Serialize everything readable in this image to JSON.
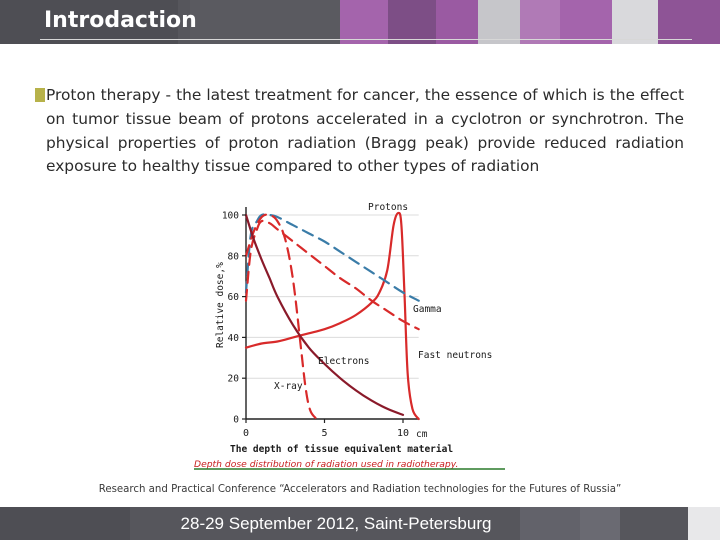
{
  "slide": {
    "title": "Introdaction",
    "body": "Proton therapy - the latest treatment for cancer, the essence of which is the effect on tumor tissue beam of protons accelerated in a cyclotron or synchrotron. The physical properties of proton radiation (Bragg peak) provide reduced radiation exposure to healthy tissue compared to other types of radiation",
    "conference_note": "Research and Practical Conference “Accelerators and Radiation technologies for the Futures of Russia”",
    "footer": "28-29 September 2012, Saint-Petersburg",
    "colors": {
      "accent_purple": "#a060a8",
      "header_gray": "#56565c",
      "bullet": "#b7b24a",
      "curve_red": "#d82a2a",
      "curve_blue": "#3a7ca8",
      "curve_darkred": "#8a1a2a"
    }
  },
  "chart_data": {
    "type": "line",
    "caption": "Depth dose distribution of radiation used in radiotherapy.",
    "xlabel": "The depth of tissue equivalent material",
    "ylabel": "Relative dose,%",
    "xlim": [
      0,
      10
    ],
    "ylim": [
      0,
      100
    ],
    "xticks": [
      0,
      5,
      10
    ],
    "xunit": "cm",
    "yticks": [
      0,
      20,
      40,
      60,
      80,
      100
    ],
    "series": [
      {
        "name": "Protons",
        "style": "solid",
        "color": "#d82a2a",
        "x": [
          0,
          1,
          2,
          3,
          4,
          5,
          6,
          7,
          8,
          8.5,
          9,
          9.4,
          9.7,
          9.9,
          10.1,
          10.3,
          10.6,
          11
        ],
        "y": [
          35,
          37,
          38,
          40,
          42,
          44,
          47,
          51,
          57,
          62,
          73,
          95,
          101,
          95,
          60,
          22,
          5,
          0
        ]
      },
      {
        "name": "Gamma",
        "style": "dashed",
        "color": "#3a7ca8",
        "x": [
          0,
          0.3,
          0.7,
          1,
          1.5,
          2,
          3,
          4,
          5,
          6,
          7,
          8,
          9,
          10,
          11
        ],
        "y": [
          62,
          90,
          97,
          100,
          100,
          99,
          95,
          91,
          87,
          82,
          77,
          72,
          67,
          62,
          58
        ]
      },
      {
        "name": "Fast neutrons",
        "style": "dashed",
        "color": "#d82a2a",
        "x": [
          0,
          0.3,
          0.7,
          1,
          1.5,
          2,
          3,
          4,
          5,
          6,
          7,
          8,
          9,
          10,
          11
        ],
        "y": [
          58,
          82,
          93,
          97,
          96,
          93,
          87,
          81,
          75,
          69,
          64,
          58,
          53,
          48,
          44
        ]
      },
      {
        "name": "Electrons",
        "style": "dashed",
        "color": "#d82a2a",
        "x": [
          0,
          0.5,
          1,
          1.5,
          2,
          2.5,
          3,
          3.5,
          3.8,
          4.1,
          4.5
        ],
        "y": [
          80,
          92,
          99,
          100,
          97,
          88,
          68,
          35,
          15,
          4,
          0
        ]
      },
      {
        "name": "X-ray",
        "style": "solid",
        "color": "#8a1a2a",
        "x": [
          0,
          0.5,
          1,
          1.5,
          2,
          3,
          4,
          5,
          6,
          7,
          8,
          9,
          10
        ],
        "y": [
          100,
          88,
          78,
          69,
          60,
          46,
          35,
          27,
          20,
          14,
          9,
          5,
          2
        ]
      }
    ]
  }
}
